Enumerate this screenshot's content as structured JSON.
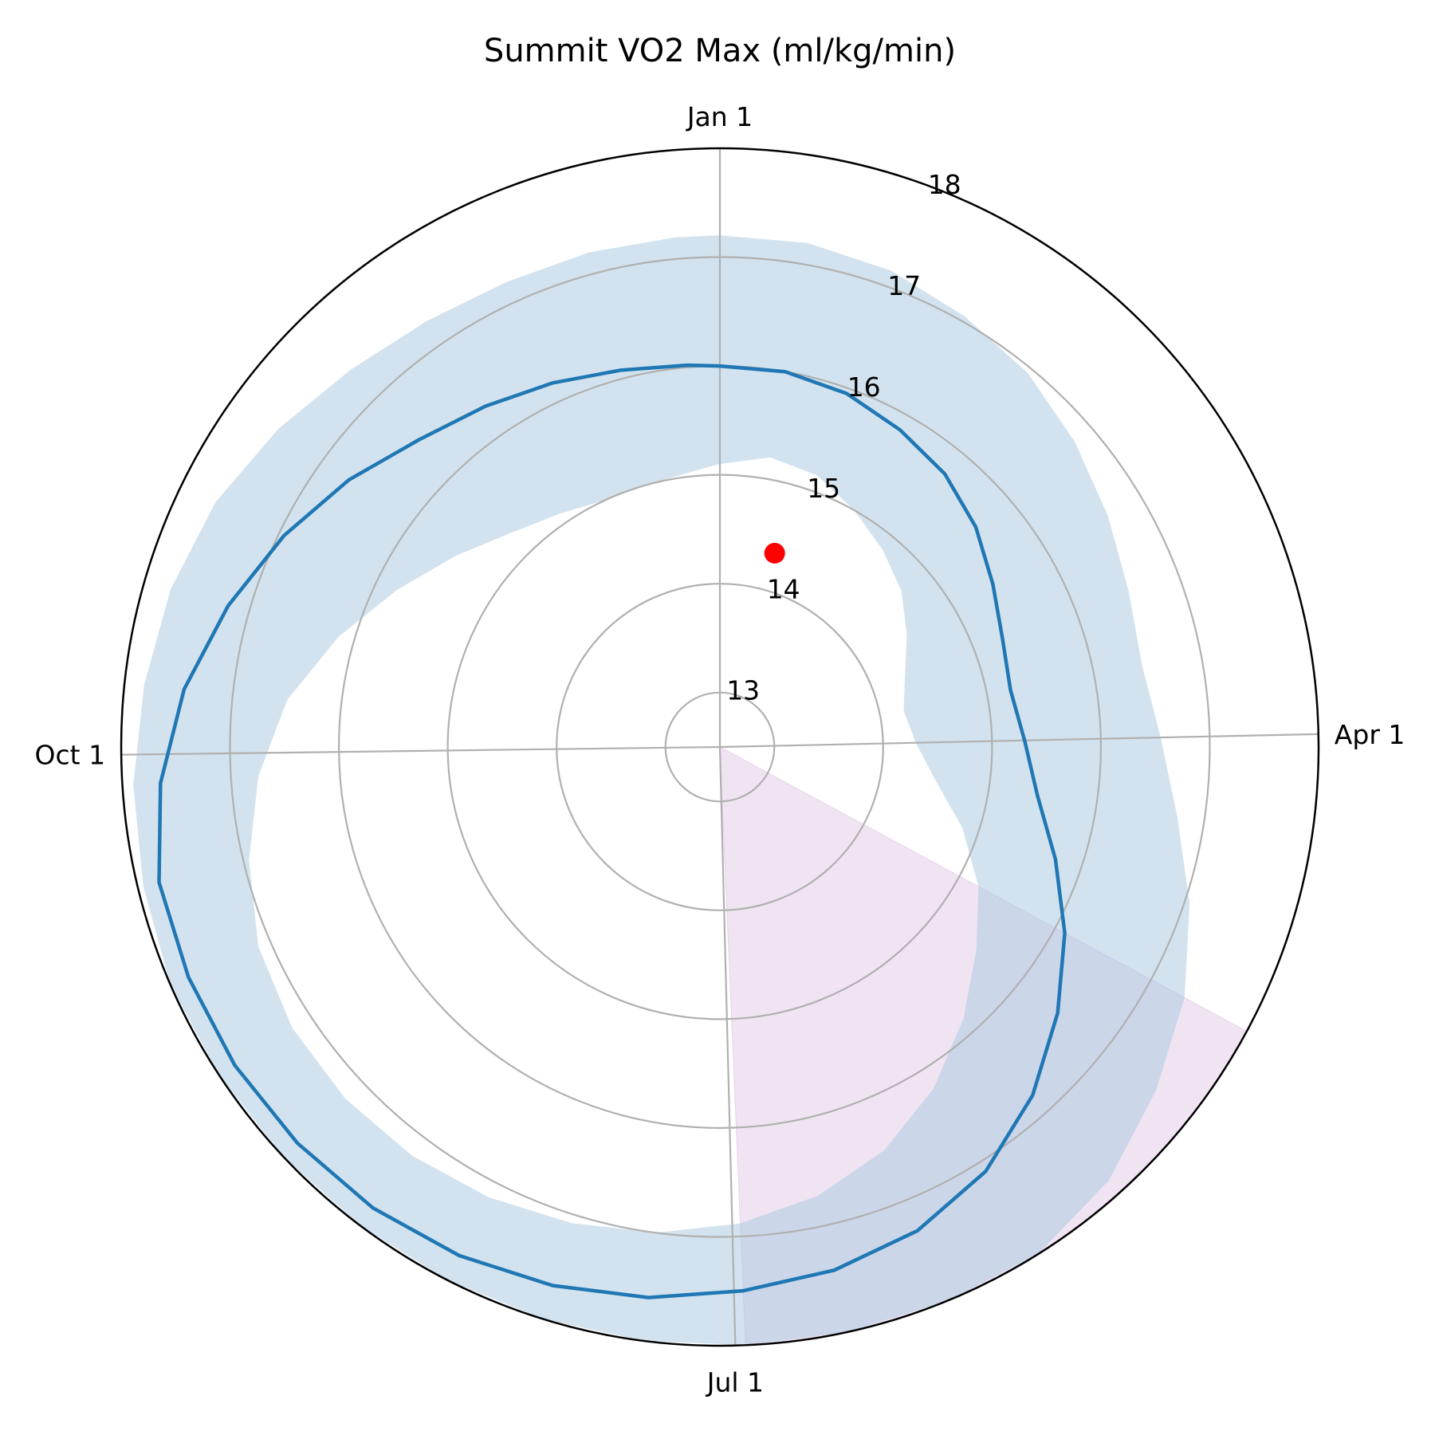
{
  "chart_data": {
    "type": "polar-line",
    "title": "Summit VO2 Max (ml/kg/min)",
    "angular_ticks": [
      "Jan 1",
      "Apr 1",
      "Jul 1",
      "Oct 1"
    ],
    "radial_ticks": [
      13,
      14,
      15,
      16,
      17,
      18
    ],
    "rlim": [
      12.5,
      18
    ],
    "grid": true,
    "series": [
      {
        "kind": "line",
        "color": "#1f77b4",
        "points": [
          {
            "doy": 1,
            "value": 16.0
          },
          {
            "doy": 11,
            "value": 16.0
          },
          {
            "doy": 21,
            "value": 15.95
          },
          {
            "doy": 31,
            "value": 15.85
          },
          {
            "doy": 41,
            "value": 15.75
          },
          {
            "doy": 51,
            "value": 15.6
          },
          {
            "doy": 61,
            "value": 15.42
          },
          {
            "doy": 71,
            "value": 15.28
          },
          {
            "doy": 81,
            "value": 15.22
          },
          {
            "doy": 91,
            "value": 15.3
          },
          {
            "doy": 101,
            "value": 15.45
          },
          {
            "doy": 111,
            "value": 15.75
          },
          {
            "doy": 121,
            "value": 16.1
          },
          {
            "doy": 131,
            "value": 16.45
          },
          {
            "doy": 141,
            "value": 16.8
          },
          {
            "doy": 151,
            "value": 17.1
          },
          {
            "doy": 161,
            "value": 17.3
          },
          {
            "doy": 171,
            "value": 17.42
          },
          {
            "doy": 181,
            "value": 17.5
          },
          {
            "doy": 191,
            "value": 17.6
          },
          {
            "doy": 201,
            "value": 17.68
          },
          {
            "doy": 211,
            "value": 17.75
          },
          {
            "doy": 221,
            "value": 17.8
          },
          {
            "doy": 231,
            "value": 17.82
          },
          {
            "doy": 241,
            "value": 17.83
          },
          {
            "doy": 251,
            "value": 17.82
          },
          {
            "doy": 261,
            "value": 17.8
          },
          {
            "doy": 271,
            "value": 17.65
          },
          {
            "doy": 281,
            "value": 17.45
          },
          {
            "doy": 291,
            "value": 17.2
          },
          {
            "doy": 301,
            "value": 16.95
          },
          {
            "doy": 311,
            "value": 16.7
          },
          {
            "doy": 321,
            "value": 16.45
          },
          {
            "doy": 331,
            "value": 16.3
          },
          {
            "doy": 341,
            "value": 16.18
          },
          {
            "doy": 351,
            "value": 16.08
          },
          {
            "doy": 361,
            "value": 16.02
          }
        ]
      }
    ],
    "band": {
      "color": "#a6c8e0",
      "points": [
        {
          "doy": 1,
          "low": 15.1,
          "high": 17.2
        },
        {
          "doy": 11,
          "low": 15.2,
          "high": 17.2
        },
        {
          "doy": 21,
          "low": 15.15,
          "high": 17.15
        },
        {
          "doy": 31,
          "low": 15.0,
          "high": 17.05
        },
        {
          "doy": 41,
          "low": 14.85,
          "high": 16.95
        },
        {
          "doy": 51,
          "low": 14.7,
          "high": 16.8
        },
        {
          "doy": 61,
          "low": 14.5,
          "high": 16.65
        },
        {
          "doy": 71,
          "low": 14.32,
          "high": 16.52
        },
        {
          "doy": 81,
          "low": 14.22,
          "high": 16.45
        },
        {
          "doy": 91,
          "low": 14.3,
          "high": 16.55
        },
        {
          "doy": 101,
          "low": 14.5,
          "high": 16.75
        },
        {
          "doy": 111,
          "low": 14.85,
          "high": 17.05
        },
        {
          "doy": 121,
          "low": 15.2,
          "high": 17.35
        },
        {
          "doy": 131,
          "low": 15.5,
          "high": 17.6
        },
        {
          "doy": 141,
          "low": 15.85,
          "high": 17.85
        },
        {
          "doy": 151,
          "low": 16.2,
          "high": 18.0
        },
        {
          "doy": 161,
          "low": 16.5,
          "high": 18.0
        },
        {
          "doy": 171,
          "low": 16.72,
          "high": 18.0
        },
        {
          "doy": 181,
          "low": 16.88,
          "high": 18.0
        },
        {
          "doy": 191,
          "low": 17.0,
          "high": 18.0
        },
        {
          "doy": 201,
          "low": 17.08,
          "high": 18.0
        },
        {
          "doy": 211,
          "low": 17.15,
          "high": 18.0
        },
        {
          "doy": 221,
          "low": 17.2,
          "high": 18.0
        },
        {
          "doy": 231,
          "low": 17.22,
          "high": 18.0
        },
        {
          "doy": 241,
          "low": 17.2,
          "high": 18.0
        },
        {
          "doy": 251,
          "low": 17.12,
          "high": 18.0
        },
        {
          "doy": 261,
          "low": 16.95,
          "high": 17.95
        },
        {
          "doy": 271,
          "low": 16.75,
          "high": 17.9
        },
        {
          "doy": 281,
          "low": 16.5,
          "high": 17.82
        },
        {
          "doy": 291,
          "low": 16.15,
          "high": 17.75
        },
        {
          "doy": 301,
          "low": 15.8,
          "high": 17.65
        },
        {
          "doy": 311,
          "low": 15.5,
          "high": 17.5
        },
        {
          "doy": 321,
          "low": 15.25,
          "high": 17.35
        },
        {
          "doy": 331,
          "low": 15.1,
          "high": 17.25
        },
        {
          "doy": 341,
          "low": 15.0,
          "high": 17.2
        },
        {
          "doy": 351,
          "low": 15.0,
          "high": 17.2
        },
        {
          "doy": 361,
          "low": 15.05,
          "high": 17.2
        }
      ]
    },
    "highlight_sector": {
      "color": "#e6d2ea",
      "start_doy": 121,
      "end_doy": 181
    },
    "marker": {
      "doy": 17,
      "value": 14.35,
      "color": "#ff0000"
    }
  }
}
